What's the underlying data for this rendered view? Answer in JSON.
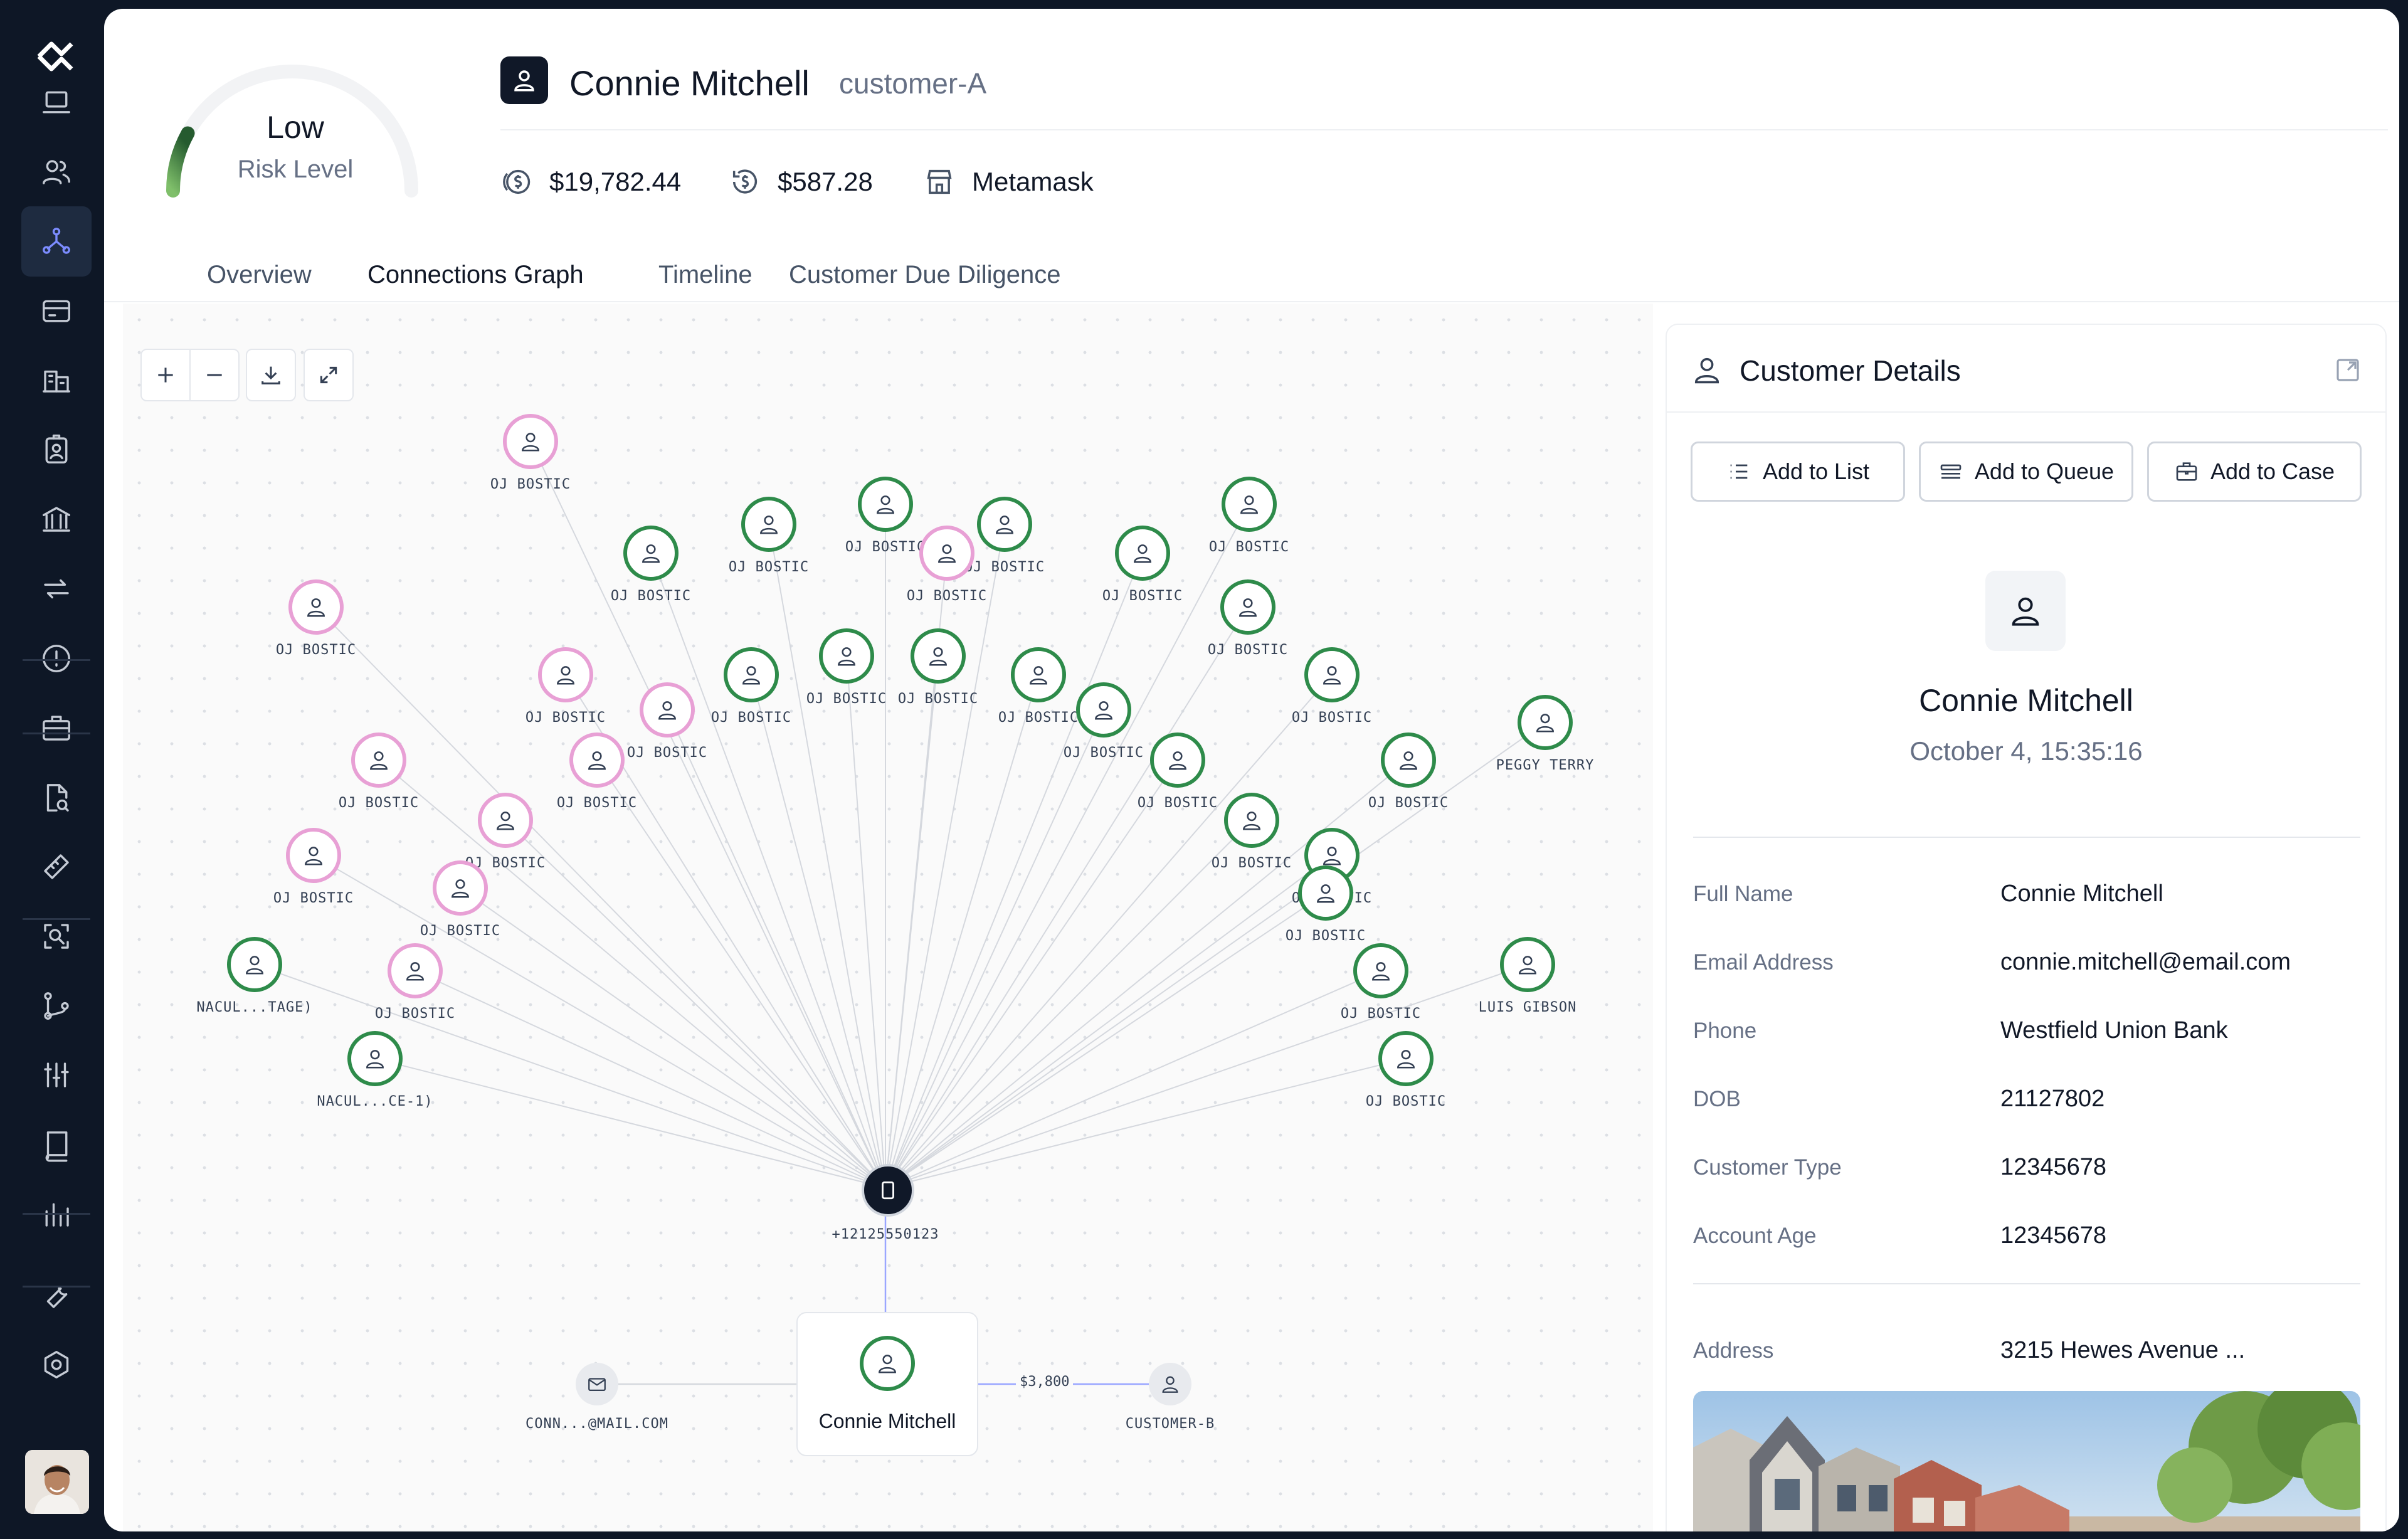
{
  "risk": {
    "level": "Low",
    "label": "Risk Level",
    "fraction": 0.16,
    "color": "#3d8a48"
  },
  "customer": {
    "name": "Connie Mitchell",
    "id": "customer-A"
  },
  "stats": [
    {
      "icon": "dollar-circle-icon",
      "value": "$19,782.44"
    },
    {
      "icon": "refresh-dollar-icon",
      "value": "$587.28"
    },
    {
      "icon": "store-icon",
      "value": "Metamask"
    }
  ],
  "tabs": [
    {
      "label": "Overview",
      "active": false
    },
    {
      "label": "Connections Graph",
      "active": true
    },
    {
      "label": "Timeline",
      "active": false
    },
    {
      "label": "Customer Due Diligence",
      "active": false
    }
  ],
  "graph": {
    "nodes": [
      {
        "label": "OJ BOSTIC",
        "color": "pink"
      },
      {
        "label": "OJ BOSTIC",
        "color": "green"
      },
      {
        "label": "OJ BOSTIC",
        "color": "green"
      },
      {
        "label": "OJ BOSTIC",
        "color": "green"
      },
      {
        "label": "OJ BOSTIC",
        "color": "green"
      },
      {
        "label": "OJ BOSTIC",
        "color": "green"
      },
      {
        "label": "OJ BOSTIC",
        "color": "green"
      },
      {
        "label": "OJ BOSTIC",
        "color": "pink"
      },
      {
        "label": "OJ BOSTIC",
        "color": "pink"
      },
      {
        "label": "OJ BOSTIC",
        "color": "green"
      },
      {
        "label": "OJ BOSTIC",
        "color": "pink"
      },
      {
        "label": "OJ BOSTIC",
        "color": "green"
      },
      {
        "label": "OJ BOSTIC",
        "color": "green"
      },
      {
        "label": "OJ BOSTIC",
        "color": "green"
      },
      {
        "label": "OJ BOSTIC",
        "color": "green"
      },
      {
        "label": "OJ BOSTIC",
        "color": "green"
      },
      {
        "label": "OJ BOSTIC",
        "color": "pink"
      },
      {
        "label": "OJ BOSTIC",
        "color": "green"
      },
      {
        "label": "PEGGY TERRY",
        "color": "green"
      },
      {
        "label": "OJ BOSTIC",
        "color": "pink"
      },
      {
        "label": "OJ BOSTIC",
        "color": "pink"
      },
      {
        "label": "OJ BOSTIC",
        "color": "green"
      },
      {
        "label": "OJ BOSTIC",
        "color": "green"
      },
      {
        "label": "OJ BOSTIC",
        "color": "pink"
      },
      {
        "label": "OJ BOSTIC",
        "color": "green"
      },
      {
        "label": "OJ BOSTIC",
        "color": "pink"
      },
      {
        "label": "OJ BOSTIC",
        "color": "pink"
      },
      {
        "label": "OJ BOSTIC",
        "color": "green"
      },
      {
        "label": "OJ BOSTIC",
        "color": "green"
      },
      {
        "label": "NACUL...TAGE)",
        "color": "green"
      },
      {
        "label": "OJ BOSTIC",
        "color": "pink"
      },
      {
        "label": "OJ BOSTIC",
        "color": "green"
      },
      {
        "label": "LUIS GIBSON",
        "color": "green"
      },
      {
        "label": "NACUL...CE-1)",
        "color": "green"
      },
      {
        "label": "OJ BOSTIC",
        "color": "green"
      }
    ],
    "hub_label": "+12125550123",
    "center_label": "Connie Mitchell",
    "email_label": "CONN...@MAIL.COM",
    "customer_b_label": "CUSTOMER-B",
    "edge_amount": "$3,800"
  },
  "panel": {
    "title": "Customer Details",
    "buttons": [
      {
        "label": "Add to List",
        "icon": "list-icon"
      },
      {
        "label": "Add to Queue",
        "icon": "queue-icon"
      },
      {
        "label": "Add to Case",
        "icon": "briefcase-icon"
      }
    ],
    "profile_name": "Connie Mitchell",
    "profile_date": "October 4, 15:35:16",
    "details": [
      {
        "key": "Full Name",
        "value": "Connie Mitchell"
      },
      {
        "key": "Email Address",
        "value": "connie.mitchell@email.com"
      },
      {
        "key": "Phone",
        "value": "Westfield Union Bank"
      },
      {
        "key": "DOB",
        "value": "21127802"
      },
      {
        "key": "Customer Type",
        "value": "12345678"
      },
      {
        "key": "Account Age",
        "value": "12345678"
      }
    ],
    "address": {
      "key": "Address",
      "value": "3215 Hewes Avenue ..."
    }
  },
  "sidebar": {
    "items": [
      "laptop-icon",
      "users-icon",
      "graph-icon",
      "card-icon",
      "buildings-icon",
      "id-badge-icon",
      "bank-icon",
      "transfer-icon",
      "alert-icon",
      "briefcase-icon",
      "file-search-icon",
      "ruler-icon",
      "scan-search-icon",
      "git-branch-icon",
      "sliders-icon",
      "book-icon",
      "bar-chart-icon",
      "wrench-icon",
      "settings-icon"
    ],
    "active": "graph-icon"
  }
}
